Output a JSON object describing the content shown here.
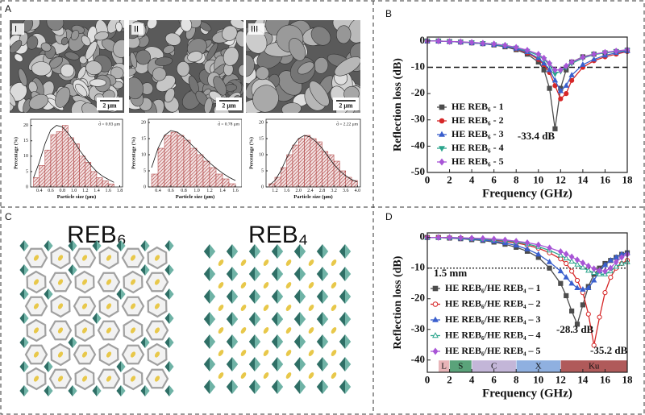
{
  "panel_labels": [
    "A",
    "B",
    "C",
    "D"
  ],
  "sem_labels": [
    "I",
    "II",
    "III"
  ],
  "scale_bars": [
    "2 μm",
    "2 μm",
    "2 μm"
  ],
  "structures": [
    "REB₆",
    "REB₄"
  ],
  "chart_data": [
    {
      "type": "histogram",
      "color": "#a83232",
      "bins": [
        0.3,
        0.4,
        0.5,
        0.6,
        0.7,
        0.8,
        0.9,
        1.0,
        1.1,
        1.2,
        1.3,
        1.4,
        1.5,
        1.6,
        1.7
      ],
      "values": [
        3,
        7,
        12,
        17,
        18,
        20,
        16,
        14,
        10,
        8,
        5,
        3,
        2,
        1
      ],
      "fit": {
        "x": [
          0.3,
          0.4,
          0.5,
          0.6,
          0.7,
          0.8,
          0.9,
          1.0,
          1.1,
          1.2,
          1.3,
          1.4,
          1.5,
          1.6,
          1.7
        ],
        "values": [
          3,
          8,
          14,
          18.5,
          20,
          19.5,
          17.5,
          15,
          12,
          9.5,
          7,
          5,
          3.5,
          2.5,
          1.5
        ]
      },
      "annotation": "d̄ = 0.83 μm",
      "xlabel": "Particle size (μm)",
      "ylabel": "Percentage (%)",
      "xlim": [
        0.25,
        1.85
      ],
      "xticks": [
        0.4,
        0.6,
        0.8,
        {
          "value": 1,
          "label": "1.0"
        },
        1.2,
        1.4,
        1.6,
        1.8
      ],
      "ylim": [
        0,
        22
      ],
      "yticks": [
        0,
        5,
        10,
        15,
        20
      ]
    },
    {
      "type": "histogram",
      "color": "#a83232",
      "bins": [
        0.3,
        0.4,
        0.5,
        0.6,
        0.7,
        0.8,
        0.9,
        1.0,
        1.1,
        1.2,
        1.3,
        1.4,
        1.5,
        1.6
      ],
      "values": [
        4,
        12,
        16,
        17,
        16,
        14.5,
        12,
        10,
        8,
        6,
        4,
        2.5,
        1
      ],
      "fit": {
        "x": [
          0.3,
          0.4,
          0.5,
          0.6,
          0.7,
          0.8,
          0.9,
          1.0,
          1.1,
          1.2,
          1.3,
          1.4,
          1.5,
          1.6
        ],
        "values": [
          6,
          12,
          16,
          17.5,
          17,
          15.5,
          13.5,
          11.5,
          9.5,
          7.5,
          5.8,
          4.3,
          3,
          2
        ]
      },
      "annotation": "d̄ = 0.78 μm",
      "xlabel": "Particle size (μm)",
      "ylabel": "Percentage (%)",
      "xlim": [
        0.25,
        1.7
      ],
      "xticks": [
        0.4,
        0.6,
        0.8,
        {
          "value": 1,
          "label": "1.0"
        },
        1.2,
        1.4,
        1.6
      ],
      "ylim": [
        0,
        21
      ],
      "yticks": [
        0,
        5,
        10,
        15,
        20
      ]
    },
    {
      "type": "histogram",
      "color": "#a83232",
      "bins": [
        1.0,
        1.2,
        1.4,
        1.6,
        1.8,
        2.0,
        2.2,
        2.4,
        2.6,
        2.8,
        3.0,
        3.2,
        3.4,
        3.6,
        3.8,
        4.0
      ],
      "values": [
        1,
        3,
        6,
        10,
        13,
        15,
        16,
        15,
        14,
        11,
        10,
        8,
        5,
        3,
        2
      ],
      "fit": {
        "x": [
          1.0,
          1.2,
          1.4,
          1.6,
          1.8,
          2.0,
          2.2,
          2.4,
          2.6,
          2.8,
          3.0,
          3.2,
          3.4,
          3.6,
          3.8,
          4.0
        ],
        "values": [
          0.5,
          2,
          5,
          9,
          12.5,
          15,
          16,
          15.5,
          14,
          12,
          9.5,
          7,
          5,
          3.5,
          2.3,
          1.5
        ]
      },
      "annotation": "d̄ = 2.22 μm",
      "xlabel": "Particle size (μm)",
      "ylabel": "Percentage (%)",
      "xlim": [
        0.9,
        4.1
      ],
      "xticks": [
        1.2,
        1.6,
        {
          "value": 2,
          "label": "2.0"
        },
        2.4,
        2.8,
        3.2,
        3.6,
        {
          "value": 4,
          "label": "4.0"
        }
      ],
      "ylim": [
        0,
        21
      ],
      "yticks": [
        0,
        5,
        10,
        15,
        20
      ]
    },
    {
      "type": "line",
      "xlabel": "Frequency (GHz)",
      "ylabel": "Reflection loss (dB)",
      "x": [
        0,
        1,
        2,
        3,
        4,
        5,
        6,
        7,
        8,
        9,
        10,
        10.5,
        11,
        11.5,
        12,
        12.5,
        13,
        14,
        15,
        16,
        17,
        18
      ],
      "series": [
        {
          "name": "HE REB₆ - 1",
          "color": "#4d4d4d",
          "marker": "square",
          "filled": true,
          "values": [
            0,
            0,
            -0.2,
            -0.4,
            -0.7,
            -1,
            -1.5,
            -2.2,
            -3.3,
            -5,
            -8,
            -11,
            -18,
            -33.4,
            -18,
            -11,
            -8,
            -6,
            -5,
            -4.5,
            -4,
            -3.5
          ]
        },
        {
          "name": "HE REB₆ - 2",
          "color": "#d62728",
          "marker": "circle",
          "filled": true,
          "values": [
            0,
            0,
            -0.2,
            -0.4,
            -0.7,
            -1,
            -1.4,
            -2,
            -3,
            -4.5,
            -7,
            -9,
            -12,
            -17,
            -22,
            -20,
            -15,
            -10,
            -7.5,
            -6,
            -5,
            -4
          ]
        },
        {
          "name": "HE REB₆ - 3",
          "color": "#3a5fcd",
          "marker": "triangle",
          "filled": true,
          "values": [
            0,
            0,
            -0.2,
            -0.4,
            -0.7,
            -1,
            -1.4,
            -2,
            -2.9,
            -4.2,
            -6.5,
            -8.5,
            -11,
            -15,
            -19,
            -17,
            -13,
            -9,
            -7,
            -5.5,
            -4.5,
            -3.8
          ]
        },
        {
          "name": "HE REB₆ - 4",
          "color": "#2ca58d",
          "marker": "triangle-down",
          "filled": true,
          "values": [
            0,
            0,
            -0.2,
            -0.4,
            -0.6,
            -0.9,
            -1.3,
            -1.8,
            -2.6,
            -3.8,
            -5.5,
            -7,
            -9,
            -12.5,
            -11.5,
            -10,
            -8.5,
            -6.5,
            -5.2,
            -4.5,
            -4,
            -3.5
          ]
        },
        {
          "name": "HE REB₆ - 5",
          "color": "#a855d6",
          "marker": "diamond",
          "filled": true,
          "values": [
            0,
            0,
            -0.2,
            -0.3,
            -0.5,
            -0.8,
            -1.1,
            -1.6,
            -2.4,
            -3.5,
            -5,
            -6.5,
            -8.5,
            -11,
            -11,
            -9.5,
            -8,
            -6.2,
            -5,
            -4.3,
            -3.8,
            -3.3
          ]
        }
      ],
      "reference_line": -10,
      "reference_style": "dashed",
      "annotations": [
        "-33.4 dB"
      ],
      "xlim": [
        0,
        18
      ],
      "xticks": [
        0,
        2,
        4,
        6,
        8,
        10,
        12,
        14,
        16,
        18
      ],
      "ylim": [
        -50,
        1.5
      ],
      "yticks": [
        0,
        -10,
        -20,
        -30,
        -40,
        -50
      ]
    },
    {
      "type": "line",
      "xlabel": "Frequency (GHz)",
      "ylabel": "Reflection loss (dB)",
      "x": [
        0,
        1,
        2,
        3,
        4,
        5,
        6,
        7,
        8,
        9,
        10,
        11,
        12,
        12.5,
        13,
        13.5,
        14,
        14.5,
        15,
        15.5,
        16,
        16.5,
        17,
        17.5,
        18
      ],
      "series": [
        {
          "name": "HE REB₆/HE REB₄ – 1",
          "color": "#4d4d4d",
          "marker": "square",
          "filled": true,
          "values": [
            0,
            0,
            -0.2,
            -0.4,
            -0.7,
            -1,
            -1.5,
            -2.2,
            -3.2,
            -4.5,
            -6.5,
            -10,
            -15,
            -19,
            -24,
            -28.3,
            -22,
            -16,
            -12,
            -10,
            -8.5,
            -7.5,
            -6.5,
            -5.5,
            -5
          ]
        },
        {
          "name": "HE REB₆/HE REB₄ – 2",
          "color": "#d62728",
          "marker": "circle",
          "filled": false,
          "values": [
            0,
            0,
            -0.1,
            -0.2,
            -0.4,
            -0.6,
            -0.9,
            -1.3,
            -1.8,
            -2.5,
            -3.5,
            -5,
            -7,
            -8.5,
            -11,
            -14,
            -18,
            -25,
            -35.2,
            -26,
            -18,
            -13,
            -10,
            -8.5,
            -7.5
          ]
        },
        {
          "name": "HE REB₆/HE REB₄ – 3",
          "color": "#3a5fcd",
          "marker": "triangle",
          "filled": true,
          "values": [
            0,
            0,
            -0.1,
            -0.3,
            -0.5,
            -0.8,
            -1.2,
            -1.8,
            -2.6,
            -3.8,
            -5.5,
            -8,
            -11,
            -13,
            -15,
            -16.5,
            -17,
            -16.5,
            -14,
            -11,
            -9,
            -7.5,
            -6.5,
            -5.5,
            -5
          ]
        },
        {
          "name": "HE REB₆/HE REB₄ – 4",
          "color": "#2ca58d",
          "marker": "triangle",
          "filled": false,
          "values": [
            0,
            0,
            0,
            -0.1,
            -0.3,
            -0.5,
            -0.7,
            -1,
            -1.5,
            -2.1,
            -3,
            -4.2,
            -5.8,
            -6.8,
            -7.8,
            -8.8,
            -9.8,
            -10.8,
            -11.5,
            -12,
            -12,
            -11,
            -9.5,
            -8.5,
            -8
          ]
        },
        {
          "name": "HE REB₆/HE REB₄ – 5",
          "color": "#a855d6",
          "marker": "diamond",
          "filled": true,
          "values": [
            0,
            0,
            0,
            -0.1,
            -0.2,
            -0.3,
            -0.5,
            -0.8,
            -1.2,
            -1.7,
            -2.4,
            -3.4,
            -4.6,
            -5.4,
            -6.3,
            -7.3,
            -8.3,
            -9.3,
            -10.2,
            -10.8,
            -11,
            -10,
            -8,
            -6.5,
            -5.5
          ]
        }
      ],
      "reference_line": -10,
      "reference_style": "dotted",
      "annotations": [
        "1.5 mm",
        "-28.3 dB",
        "-35.2 dB"
      ],
      "bands": [
        {
          "label": "L",
          "range": [
            1,
            2
          ],
          "color": "#e8b4b8"
        },
        {
          "label": "S",
          "range": [
            2,
            4
          ],
          "color": "#5aa37a"
        },
        {
          "label": "C",
          "range": [
            4,
            8
          ],
          "color": "#c3b6d8"
        },
        {
          "label": "X",
          "range": [
            8,
            12
          ],
          "color": "#8fb0e0"
        },
        {
          "label": "Ku",
          "range": [
            12,
            18
          ],
          "color": "#b05a5a"
        }
      ],
      "xlim": [
        0,
        18
      ],
      "xticks": [
        0,
        2,
        4,
        6,
        8,
        10,
        12,
        14,
        16,
        18
      ],
      "ylim": [
        -44,
        1.5
      ],
      "yticks": [
        0,
        -10,
        -20,
        -30,
        -40
      ]
    }
  ]
}
